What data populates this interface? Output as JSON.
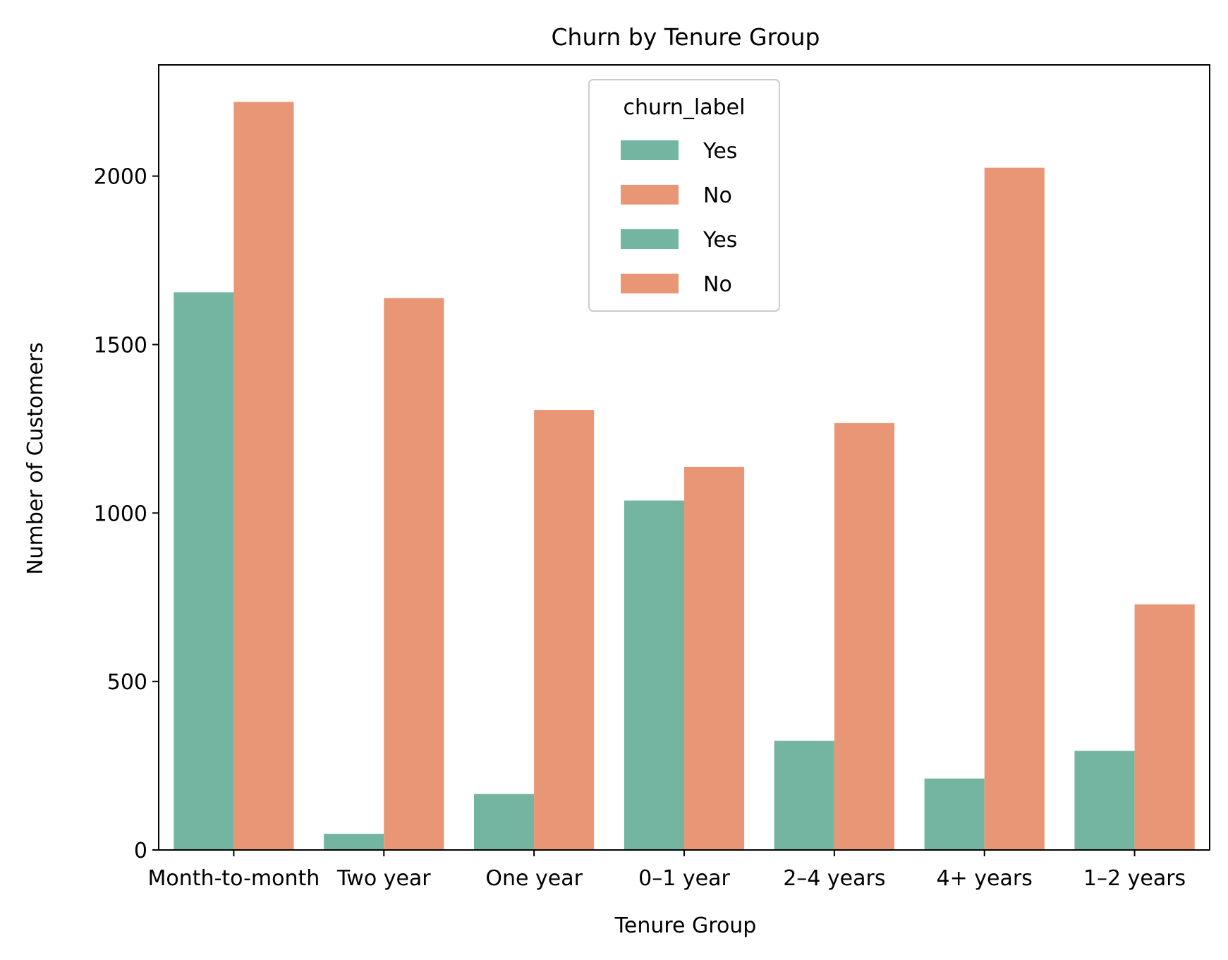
{
  "chart_data": {
    "type": "bar",
    "title": "Churn by Tenure Group",
    "xlabel": "Tenure Group",
    "ylabel": "Number of Customers",
    "categories": [
      "Month-to-month",
      "Two year",
      "One year",
      "0–1 year",
      "2–4 years",
      "4+ years",
      "1–2 years"
    ],
    "series": [
      {
        "name": "Yes",
        "color": "#73b5a0",
        "values": [
          1655,
          48,
          166,
          1037,
          324,
          212,
          294
        ]
      },
      {
        "name": "No",
        "color": "#e89675",
        "values": [
          2220,
          1638,
          1306,
          1137,
          1267,
          2025,
          729
        ]
      }
    ],
    "ylim": [
      0,
      2330
    ],
    "yticks": [
      0,
      500,
      1000,
      1500,
      2000
    ],
    "grid": false,
    "legend": {
      "title": "churn_label",
      "placement": "top-center",
      "entries": [
        {
          "label": "Yes",
          "color": "#73b5a0"
        },
        {
          "label": "No",
          "color": "#e89675"
        },
        {
          "label": "Yes",
          "color": "#73b5a0"
        },
        {
          "label": "No",
          "color": "#e89675"
        }
      ]
    }
  }
}
